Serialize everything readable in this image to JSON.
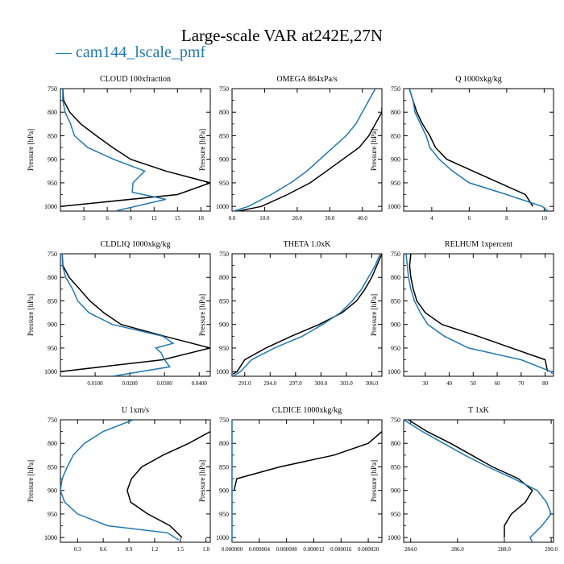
{
  "title": "Large-scale VAR at242E,27N",
  "legend": {
    "label": "— cam144_lscale_pmf",
    "color": "#2178b0"
  },
  "colors": {
    "series_a": "#000000",
    "series_b": "#2178b0"
  },
  "chart_data": [
    {
      "type": "line",
      "title": "CLOUD  100xfraction",
      "ylabel": "Pressure [hPa]",
      "xlim": [
        0,
        19.2
      ],
      "ylim": [
        750,
        1010
      ],
      "yreverse": true,
      "xticks": [
        3,
        6,
        9,
        12,
        15,
        18
      ],
      "xticklabels": [
        "3",
        "6",
        "9",
        "12",
        "15",
        "18"
      ],
      "yticks": [
        750,
        800,
        850,
        900,
        950,
        1000
      ],
      "series": [
        {
          "values": [
            [
              0.3,
              750
            ],
            [
              0.4,
              775
            ],
            [
              1.2,
              800
            ],
            [
              2.6,
              825
            ],
            [
              4.6,
              850
            ],
            [
              6.7,
              875
            ],
            [
              9.0,
              900
            ],
            [
              13.5,
              925
            ],
            [
              19.2,
              950
            ],
            [
              15.0,
              975
            ],
            [
              0,
              1000
            ]
          ]
        },
        {
          "values": [
            [
              0.3,
              750
            ],
            [
              0.3,
              775
            ],
            [
              0.6,
              800
            ],
            [
              1.3,
              825
            ],
            [
              1.8,
              850
            ],
            [
              3.5,
              875
            ],
            [
              6.8,
              900
            ],
            [
              10.8,
              925
            ],
            [
              9.3,
              950
            ],
            [
              9.2,
              970
            ],
            [
              13.5,
              985
            ],
            [
              7.0,
              1010
            ]
          ]
        }
      ]
    },
    {
      "type": "line",
      "title": "OMEGA  864xPa/s",
      "ylabel": "Pressure [hPa]",
      "xlim": [
        0,
        46
      ],
      "ylim": [
        750,
        1010
      ],
      "yreverse": true,
      "xticks": [
        0,
        10,
        20,
        30,
        40
      ],
      "xticklabels": [
        "0.0",
        "10.0",
        "20.0",
        "30.0",
        "40.0"
      ],
      "yticks": [
        750,
        800,
        850,
        900,
        950,
        1000
      ],
      "series": [
        {
          "values": [
            [
              2,
              1010
            ],
            [
              9,
              1000
            ],
            [
              17,
              975
            ],
            [
              24,
              950
            ],
            [
              29,
              925
            ],
            [
              34,
              900
            ],
            [
              39,
              875
            ],
            [
              42,
              850
            ],
            [
              44,
              825
            ],
            [
              46,
              800
            ],
            [
              46,
              790
            ]
          ]
        },
        {
          "values": [
            [
              0.5,
              1010
            ],
            [
              5,
              1000
            ],
            [
              12,
              975
            ],
            [
              18,
              950
            ],
            [
              23,
              925
            ],
            [
              27,
              900
            ],
            [
              31,
              875
            ],
            [
              35,
              850
            ],
            [
              38,
              825
            ],
            [
              40,
              800
            ],
            [
              42,
              775
            ],
            [
              44,
              750
            ]
          ]
        }
      ]
    },
    {
      "type": "line",
      "title": "Q  1000xkg/kg",
      "ylabel": "Pressure [hPa]",
      "xlim": [
        2.5,
        10.5
      ],
      "ylim": [
        750,
        1010
      ],
      "yreverse": true,
      "xticks": [
        4,
        6,
        8,
        10
      ],
      "xticklabels": [
        "4",
        "6",
        "8",
        "10"
      ],
      "yticks": [
        750,
        800,
        850,
        900,
        950,
        1000
      ],
      "series": [
        {
          "values": [
            [
              2.8,
              750
            ],
            [
              3.0,
              775
            ],
            [
              3.2,
              800
            ],
            [
              3.5,
              825
            ],
            [
              3.9,
              850
            ],
            [
              4.2,
              875
            ],
            [
              4.8,
              900
            ],
            [
              6.2,
              925
            ],
            [
              7.6,
              950
            ],
            [
              9.0,
              975
            ],
            [
              9.4,
              1000
            ]
          ]
        },
        {
          "values": [
            [
              2.8,
              750
            ],
            [
              3.0,
              775
            ],
            [
              3.1,
              800
            ],
            [
              3.4,
              825
            ],
            [
              3.7,
              850
            ],
            [
              3.9,
              875
            ],
            [
              4.4,
              900
            ],
            [
              5.1,
              925
            ],
            [
              6.0,
              950
            ],
            [
              8.0,
              975
            ],
            [
              9.9,
              1000
            ],
            [
              10.2,
              1010
            ]
          ]
        }
      ]
    },
    {
      "type": "line",
      "title": "CLDLIQ  1000xkg/kg",
      "ylabel": "Pressure [hPa]",
      "xlim": [
        0,
        0.0432
      ],
      "ylim": [
        750,
        1010
      ],
      "yreverse": true,
      "xticks": [
        0.01,
        0.02,
        0.03,
        0.04
      ],
      "xticklabels": [
        "0.0100",
        "0.0200",
        "0.0300",
        "0.0400"
      ],
      "yticks": [
        750,
        800,
        850,
        900,
        950,
        1000
      ],
      "series": [
        {
          "values": [
            [
              0.0005,
              750
            ],
            [
              0.0007,
              775
            ],
            [
              0.0025,
              800
            ],
            [
              0.0055,
              825
            ],
            [
              0.0085,
              850
            ],
            [
              0.0125,
              875
            ],
            [
              0.0175,
              900
            ],
            [
              0.03,
              925
            ],
            [
              0.0432,
              950
            ],
            [
              0.0295,
              975
            ],
            [
              0,
              1000
            ]
          ]
        },
        {
          "values": [
            [
              0.0005,
              750
            ],
            [
              0.0006,
              775
            ],
            [
              0.0015,
              800
            ],
            [
              0.0035,
              825
            ],
            [
              0.005,
              850
            ],
            [
              0.0082,
              875
            ],
            [
              0.015,
              900
            ],
            [
              0.0295,
              925
            ],
            [
              0.0325,
              940
            ],
            [
              0.0275,
              950
            ],
            [
              0.029,
              960
            ],
            [
              0.03,
              975
            ],
            [
              0.0315,
              990
            ],
            [
              0.015,
              1010
            ]
          ]
        }
      ]
    },
    {
      "type": "line",
      "title": "THETA  1.0xK",
      "ylabel": "Pressure [hPa]",
      "xlim": [
        289.5,
        307.2
      ],
      "ylim": [
        750,
        1010
      ],
      "yreverse": true,
      "xticks": [
        291,
        294,
        297,
        300,
        303,
        306
      ],
      "xticklabels": [
        "291.0",
        "294.0",
        "297.0",
        "300.0",
        "303.0",
        "306.0"
      ],
      "yticks": [
        750,
        800,
        850,
        900,
        950,
        1000
      ],
      "series": [
        {
          "values": [
            [
              289.6,
              1005
            ],
            [
              290.1,
              1000
            ],
            [
              291.0,
              975
            ],
            [
              293.5,
              950
            ],
            [
              296.5,
              925
            ],
            [
              299.8,
              900
            ],
            [
              302.5,
              875
            ],
            [
              304.2,
              850
            ],
            [
              305.2,
              825
            ],
            [
              306.0,
              800
            ],
            [
              306.6,
              775
            ],
            [
              307.2,
              750
            ]
          ]
        },
        {
          "values": [
            [
              289.6,
              1010
            ],
            [
              290.5,
              1000
            ],
            [
              291.8,
              975
            ],
            [
              294.5,
              950
            ],
            [
              297.8,
              925
            ],
            [
              300.2,
              900
            ],
            [
              302.3,
              875
            ],
            [
              303.7,
              850
            ],
            [
              304.8,
              825
            ],
            [
              305.6,
              800
            ],
            [
              306.4,
              775
            ],
            [
              307.0,
              750
            ]
          ]
        }
      ]
    },
    {
      "type": "line",
      "title": "RELHUM  1xpercent",
      "ylabel": "Pressure [hPa]",
      "xlim": [
        21,
        83.5
      ],
      "ylim": [
        750,
        1010
      ],
      "yreverse": true,
      "xticks": [
        30,
        40,
        50,
        60,
        70,
        80
      ],
      "xticklabels": [
        "30",
        "40",
        "50",
        "60",
        "70",
        "80"
      ],
      "yticks": [
        750,
        800,
        850,
        900,
        950,
        1000
      ],
      "series": [
        {
          "values": [
            [
              24,
              750
            ],
            [
              23.5,
              775
            ],
            [
              24,
              800
            ],
            [
              25,
              825
            ],
            [
              26.5,
              850
            ],
            [
              30,
              875
            ],
            [
              37,
              900
            ],
            [
              52,
              925
            ],
            [
              66,
              950
            ],
            [
              80,
              975
            ],
            [
              81,
              1000
            ]
          ]
        },
        {
          "values": [
            [
              22,
              750
            ],
            [
              22.5,
              775
            ],
            [
              23,
              800
            ],
            [
              24,
              825
            ],
            [
              25.5,
              850
            ],
            [
              28,
              875
            ],
            [
              31,
              900
            ],
            [
              38,
              925
            ],
            [
              48,
              950
            ],
            [
              70,
              975
            ],
            [
              82.5,
              1000
            ],
            [
              83,
              1005
            ]
          ]
        }
      ]
    },
    {
      "type": "line",
      "title": "U  1xm/s",
      "ylabel": "Pressure [hPa]",
      "xlim": [
        0.1,
        1.85
      ],
      "ylim": [
        750,
        1010
      ],
      "yreverse": true,
      "xticks": [
        0.3,
        0.6,
        0.9,
        1.2,
        1.5,
        1.8
      ],
      "xticklabels": [
        "0.3",
        "0.6",
        "0.9",
        "1.2",
        "1.5",
        "1.8"
      ],
      "yticks": [
        750,
        800,
        850,
        900,
        950,
        1000
      ],
      "series": [
        {
          "values": [
            [
              1.85,
              775
            ],
            [
              1.6,
              800
            ],
            [
              1.3,
              825
            ],
            [
              1.05,
              850
            ],
            [
              0.93,
              875
            ],
            [
              0.88,
              900
            ],
            [
              0.92,
              925
            ],
            [
              1.12,
              950
            ],
            [
              1.38,
              975
            ],
            [
              1.52,
              1000
            ]
          ]
        },
        {
          "values": [
            [
              0.95,
              750
            ],
            [
              0.6,
              775
            ],
            [
              0.38,
              800
            ],
            [
              0.25,
              825
            ],
            [
              0.18,
              850
            ],
            [
              0.12,
              875
            ],
            [
              0.1,
              900
            ],
            [
              0.15,
              925
            ],
            [
              0.3,
              950
            ],
            [
              0.65,
              975
            ],
            [
              1.35,
              990
            ],
            [
              1.48,
              1005
            ]
          ]
        }
      ]
    },
    {
      "type": "line",
      "title": "CLDICE  1000xkg/kg",
      "ylabel": "Pressure [hPa]",
      "xlim": [
        0,
        2.2e-05
      ],
      "ylim": [
        750,
        1010
      ],
      "yreverse": true,
      "xticks": [
        0,
        4e-06,
        8e-06,
        1.2e-05,
        1.6e-05,
        2e-05
      ],
      "xticklabels": [
        "0.000000",
        "0.000004",
        "0.000008",
        "0.000012",
        "0.000016",
        "0.000020"
      ],
      "yticks": [
        750,
        800,
        850,
        900,
        950,
        1000
      ],
      "series": [
        {
          "values": [
            [
              2.2e-05,
              775
            ],
            [
              2e-05,
              800
            ],
            [
              1.5e-05,
              825
            ],
            [
              7e-06,
              850
            ],
            [
              7e-07,
              875
            ],
            [
              3e-07,
              900
            ]
          ]
        },
        {
          "values": [
            [
              0,
              750
            ],
            [
              0,
              1010
            ]
          ]
        }
      ]
    },
    {
      "type": "line",
      "title": "T  1xK",
      "ylabel": "Pressure [hPa]",
      "xlim": [
        283.7,
        290.1
      ],
      "ylim": [
        750,
        1010
      ],
      "yreverse": true,
      "xticks": [
        284,
        286,
        288,
        290
      ],
      "xticklabels": [
        "284.0",
        "286.0",
        "288.0",
        "290.0"
      ],
      "yticks": [
        750,
        800,
        850,
        900,
        950,
        1000
      ],
      "series": [
        {
          "values": [
            [
              283.9,
              750
            ],
            [
              284.7,
              775
            ],
            [
              285.7,
              800
            ],
            [
              286.6,
              825
            ],
            [
              287.5,
              850
            ],
            [
              288.6,
              875
            ],
            [
              289.2,
              900
            ],
            [
              288.9,
              925
            ],
            [
              288.3,
              950
            ],
            [
              288.0,
              975
            ],
            [
              288.0,
              1000
            ]
          ]
        },
        {
          "values": [
            [
              283.7,
              750
            ],
            [
              284.5,
              775
            ],
            [
              285.4,
              800
            ],
            [
              286.3,
              825
            ],
            [
              287.3,
              850
            ],
            [
              288.4,
              875
            ],
            [
              289.4,
              900
            ],
            [
              289.8,
              925
            ],
            [
              290.0,
              950
            ],
            [
              289.6,
              975
            ],
            [
              289.1,
              1000
            ],
            [
              289.2,
              1010
            ]
          ]
        }
      ]
    }
  ]
}
